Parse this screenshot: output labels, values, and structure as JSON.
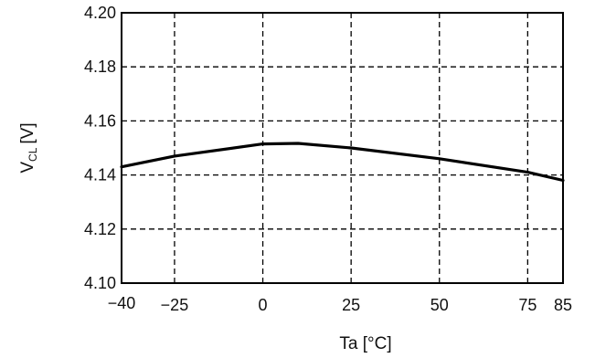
{
  "chart_data": {
    "type": "line",
    "title": "",
    "xlabel": "Ta [°C]",
    "ylabel": "V",
    "ylabel_subscript": "CL",
    "ylabel_unit": "[V]",
    "xlim": [
      -40,
      85
    ],
    "ylim": [
      4.1,
      4.2
    ],
    "x_ticks": [
      -40,
      -25,
      0,
      25,
      50,
      75,
      85
    ],
    "x_tick_labels": [
      "−40",
      "−25",
      "0",
      "25",
      "50",
      "75",
      "85"
    ],
    "y_ticks": [
      4.1,
      4.12,
      4.14,
      4.16,
      4.18,
      4.2
    ],
    "y_tick_labels": [
      "4.10",
      "4.12",
      "4.14",
      "4.16",
      "4.18",
      "4.20"
    ],
    "grid": true,
    "series": [
      {
        "x": [
          -40,
          -25,
          0,
          10,
          25,
          50,
          75,
          85
        ],
        "y": [
          4.143,
          4.147,
          4.1515,
          4.1517,
          4.15,
          4.146,
          4.141,
          4.138
        ]
      }
    ]
  }
}
